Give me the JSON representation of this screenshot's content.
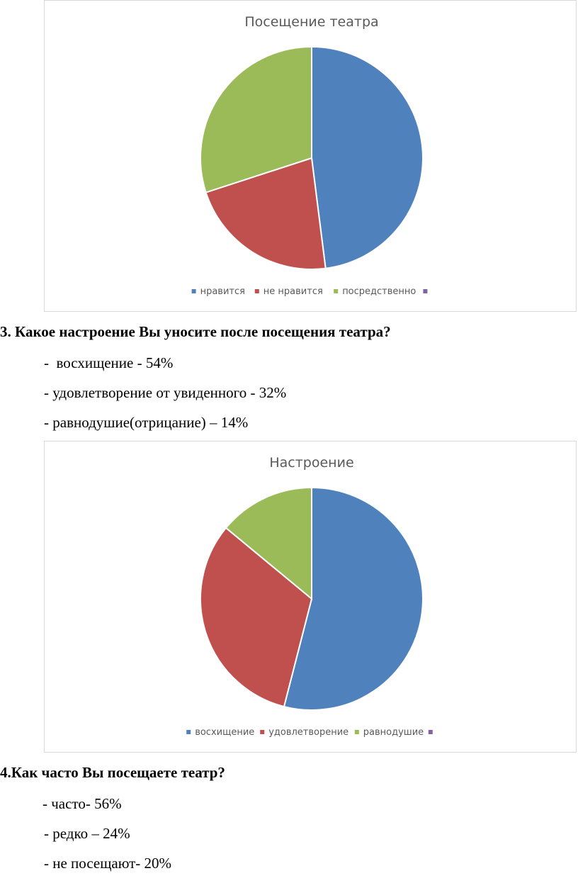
{
  "chart_data": [
    {
      "type": "pie",
      "title": "Посещение театра",
      "categories": [
        "нравится",
        "не нравится",
        "посредственно",
        ""
      ],
      "values": [
        48,
        22,
        30,
        0
      ],
      "colors": [
        "#4f81bd",
        "#c0504d",
        "#9bbb59",
        "#8064a2"
      ],
      "legend_position": "bottom"
    },
    {
      "type": "pie",
      "title": "Настроение",
      "categories": [
        "восхищение",
        "удовлетворение",
        "равнодушие",
        ""
      ],
      "values": [
        54,
        32,
        14,
        0
      ],
      "colors": [
        "#4f81bd",
        "#c0504d",
        "#9bbb59",
        "#8064a2"
      ],
      "legend_position": "bottom"
    }
  ],
  "question3": {
    "text": "3. Какое настроение Вы уносите после посещения театра?",
    "answers": [
      "-  восхищение - 54%",
      "- удовлетворение от увиденного - 32%",
      "- равнодушие(отрицание) – 14%"
    ]
  },
  "question4": {
    "text": "4.Как часто Вы посещаете театр?",
    "answers": [
      "- часто- 56%",
      "- редко – 24%",
      "- не посещают- 20%"
    ]
  }
}
